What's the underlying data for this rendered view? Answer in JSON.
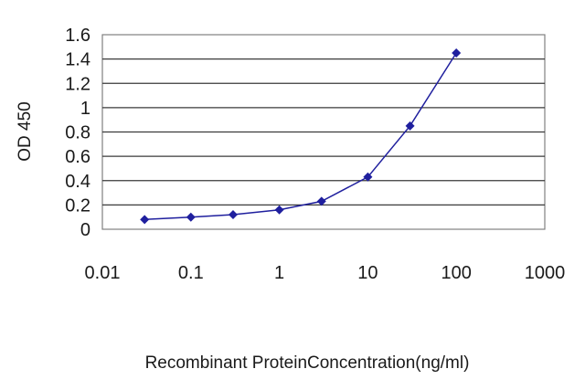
{
  "chart_data": {
    "type": "line",
    "title": "",
    "xlabel": "Recombinant ProteinConcentration(ng/ml)",
    "ylabel": "OD 450",
    "x_scale": "log",
    "xlim": [
      0.01,
      1000
    ],
    "ylim": [
      0,
      1.6
    ],
    "x_ticks": [
      "0.01",
      "0.1",
      "1",
      "10",
      "100",
      "1000"
    ],
    "y_ticks": [
      "0",
      "0.2",
      "0.4",
      "0.6",
      "0.8",
      "1",
      "1.2",
      "1.4",
      "1.6"
    ],
    "grid": "horizontal",
    "legend": "none",
    "series": [
      {
        "x": [
          0.03,
          0.1,
          0.3,
          1,
          3,
          10,
          30,
          100
        ],
        "y": [
          0.08,
          0.1,
          0.12,
          0.16,
          0.23,
          0.43,
          0.85,
          1.45
        ],
        "color": "#1f1f9e",
        "marker": "diamond"
      }
    ]
  }
}
